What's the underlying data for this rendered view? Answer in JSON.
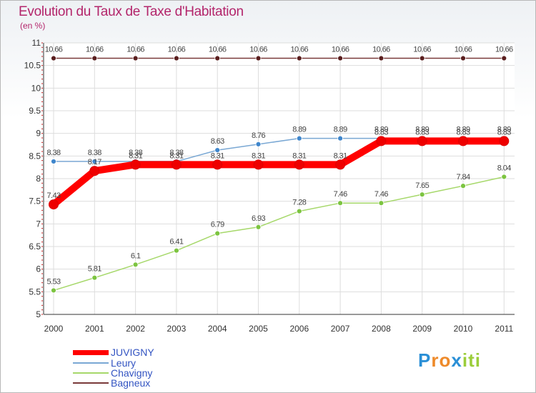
{
  "chart_data": {
    "type": "line",
    "title": "Evolution du Taux de Taxe d'Habitation",
    "subtitle": "(en %)",
    "xlabel": "",
    "ylabel": "",
    "ylim": [
      5,
      11
    ],
    "y_ticks": [
      "5",
      "5.5",
      "6",
      "6.5",
      "7",
      "7.5",
      "8",
      "8.5",
      "9",
      "9.5",
      "10",
      "10.5",
      "11"
    ],
    "categories": [
      "2000",
      "2001",
      "2002",
      "2003",
      "2004",
      "2005",
      "2006",
      "2007",
      "2008",
      "2009",
      "2010",
      "2011"
    ],
    "grid": true,
    "legend_position": "bottom-left",
    "series": [
      {
        "name": "Bagneux",
        "color": "#7a3a3a",
        "marker": "#5a1e1e",
        "values": [
          10.66,
          10.66,
          10.66,
          10.66,
          10.66,
          10.66,
          10.66,
          10.66,
          10.66,
          10.66,
          10.66,
          10.66
        ],
        "labels": [
          "10.66",
          "10.66",
          "10.66",
          "10.66",
          "10.66",
          "10.66",
          "10.66",
          "10.66",
          "10.66",
          "10.66",
          "10.66",
          "10.66"
        ]
      },
      {
        "name": "Chavigny",
        "color": "#a6d86a",
        "marker": "#7cc440",
        "values": [
          5.53,
          5.81,
          6.1,
          6.41,
          6.79,
          6.93,
          7.28,
          7.46,
          7.46,
          7.65,
          7.84,
          8.04
        ],
        "labels": [
          "5.53",
          "5.81",
          "6.1",
          "6.41",
          "6.79",
          "6.93",
          "7.28",
          "7.46",
          "7.46",
          "7.65",
          "7.84",
          "8.04"
        ]
      },
      {
        "name": "Leury",
        "color": "#7aa8d4",
        "marker": "#3f86cc",
        "values": [
          8.38,
          8.38,
          8.38,
          8.38,
          8.63,
          8.76,
          8.89,
          8.89,
          8.89,
          8.89,
          8.89,
          8.89
        ],
        "labels": [
          "8.38",
          "8.38",
          "8.38",
          "8.38",
          "8.63",
          "8.76",
          "8.89",
          "8.89",
          "8.89",
          "8.89",
          "8.89",
          "8.89"
        ]
      },
      {
        "name": "JUVIGNY",
        "color": "#ff0000",
        "marker": "#ee0000",
        "values": [
          7.43,
          8.17,
          8.31,
          8.31,
          8.31,
          8.31,
          8.31,
          8.31,
          8.83,
          8.83,
          8.83,
          8.83
        ],
        "labels": [
          "7.43",
          "8.17",
          "8.31",
          "8.31",
          "8.31",
          "8.31",
          "8.31",
          "8.31",
          "8.83",
          "8.83",
          "8.83",
          "8.83"
        ]
      }
    ]
  },
  "legend": [
    {
      "name": "JUVIGNY",
      "color": "#ff0000"
    },
    {
      "name": "Leury",
      "color": "#7aa8d4"
    },
    {
      "name": "Chavigny",
      "color": "#a6d86a"
    },
    {
      "name": "Bagneux",
      "color": "#7a3a3a"
    }
  ],
  "brand": {
    "letters": [
      "P",
      "r",
      "o",
      "x",
      "i",
      "t",
      "i"
    ],
    "colors": [
      "#2a8fd6",
      "#ee8a2a",
      "#ee8a2a",
      "#2a8fd6",
      "#9bcd3a",
      "#9bcd3a",
      "#9bcd3a"
    ]
  }
}
